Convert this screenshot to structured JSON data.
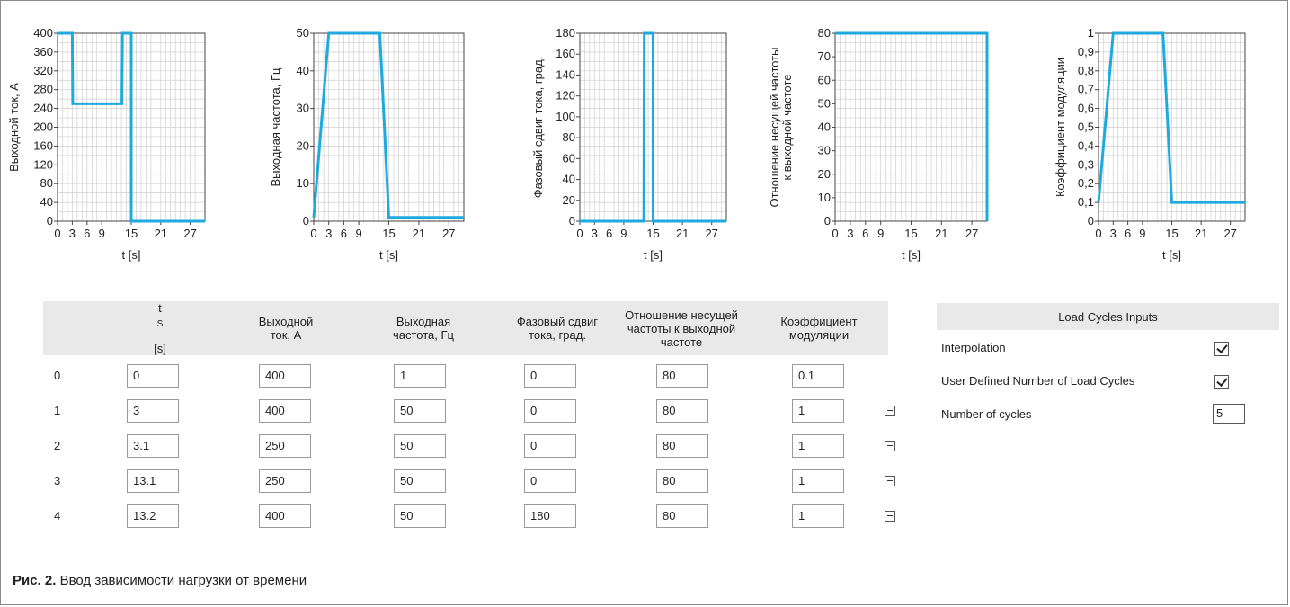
{
  "chart_data": [
    {
      "type": "line",
      "ylabel": "Выходной ток, А",
      "xlabel": "t [s]",
      "ylim": [
        0,
        400
      ],
      "xlim": [
        0,
        30
      ],
      "yticks": [
        0,
        40,
        80,
        120,
        160,
        200,
        240,
        280,
        320,
        360,
        400
      ],
      "xticks": [
        0,
        3,
        6,
        9,
        15,
        21,
        27
      ],
      "grid": true,
      "color": "#1fa9e1",
      "series": [
        {
          "x": [
            0,
            3,
            3.1,
            13.1,
            13.2,
            15,
            15,
            30
          ],
          "y": [
            400,
            400,
            250,
            250,
            400,
            400,
            0,
            0
          ]
        }
      ]
    },
    {
      "type": "line",
      "ylabel": "Выходная частота, Гц",
      "xlabel": "t [s]",
      "ylim": [
        0,
        50
      ],
      "xlim": [
        0,
        30
      ],
      "yticks": [
        0,
        10,
        20,
        30,
        40,
        50
      ],
      "xticks": [
        0,
        3,
        6,
        9,
        15,
        21,
        27
      ],
      "grid": true,
      "color": "#1fa9e1",
      "series": [
        {
          "x": [
            0,
            3,
            13.2,
            15,
            30
          ],
          "y": [
            1,
            50,
            50,
            1,
            1
          ]
        }
      ]
    },
    {
      "type": "line",
      "ylabel": "Фазовый сдвиг тока, град.",
      "xlabel": "t [s]",
      "ylim": [
        0,
        180
      ],
      "xlim": [
        0,
        30
      ],
      "yticks": [
        0,
        20,
        40,
        60,
        80,
        100,
        120,
        140,
        160,
        180
      ],
      "xticks": [
        0,
        3,
        6,
        9,
        15,
        21,
        27
      ],
      "grid": true,
      "color": "#1fa9e1",
      "series": [
        {
          "x": [
            0,
            13.1,
            13.2,
            15,
            15,
            30
          ],
          "y": [
            0,
            0,
            180,
            180,
            0,
            0
          ]
        }
      ]
    },
    {
      "type": "line",
      "ylabel": "Отношение несущей частоты к выходной частоте",
      "xlabel": "t [s]",
      "ylim": [
        0,
        80
      ],
      "xlim": [
        0,
        30
      ],
      "yticks": [
        0,
        10,
        20,
        30,
        40,
        50,
        60,
        70,
        80
      ],
      "xticks": [
        0,
        3,
        6,
        9,
        15,
        21,
        27
      ],
      "grid": true,
      "color": "#1fa9e1",
      "series": [
        {
          "x": [
            0,
            30,
            30
          ],
          "y": [
            80,
            80,
            0
          ]
        }
      ]
    },
    {
      "type": "line",
      "ylabel": "Коэффициент модуляции",
      "xlabel": "t [s]",
      "ylim": [
        0,
        1
      ],
      "xlim": [
        0,
        30
      ],
      "yticks": [
        0,
        0.1,
        0.2,
        0.3,
        0.4,
        0.5,
        0.6,
        0.7,
        0.8,
        0.9,
        1
      ],
      "ytick_labels": [
        "0",
        "0,1",
        "0,2",
        "0,3",
        "0,4",
        "0,5",
        "0,6",
        "0,7",
        "0,8",
        "0,9",
        "1"
      ],
      "xticks": [
        0,
        3,
        6,
        9,
        15,
        21,
        27
      ],
      "grid": true,
      "color": "#1fa9e1",
      "series": [
        {
          "x": [
            0,
            3,
            13.2,
            15,
            30
          ],
          "y": [
            0.1,
            1,
            1,
            0.1,
            0.1
          ]
        }
      ]
    }
  ],
  "table": {
    "headers": {
      "ts_main": "t",
      "ts_sub": "S",
      "ts_unit": "[s]",
      "current": "Выходной ток, А",
      "frequency": "Выходная частота, Гц",
      "phase": "Фазовый сдвиг тока, град.",
      "ratio": "Отношение несущей частоты к выходной частоте",
      "modulation": "Коэффициент модуляции"
    },
    "rows": [
      {
        "index": "0",
        "ts": "0",
        "current": "400",
        "frequency": "1",
        "phase": "0",
        "ratio": "80",
        "modulation": "0.1"
      },
      {
        "index": "1",
        "ts": "3",
        "current": "400",
        "frequency": "50",
        "phase": "0",
        "ratio": "80",
        "modulation": "1"
      },
      {
        "index": "2",
        "ts": "3.1",
        "current": "250",
        "frequency": "50",
        "phase": "0",
        "ratio": "80",
        "modulation": "1"
      },
      {
        "index": "3",
        "ts": "13.1",
        "current": "250",
        "frequency": "50",
        "phase": "0",
        "ratio": "80",
        "modulation": "1"
      },
      {
        "index": "4",
        "ts": "13.2",
        "current": "400",
        "frequency": "50",
        "phase": "180",
        "ratio": "80",
        "modulation": "1"
      }
    ]
  },
  "panel": {
    "title": "Load Cycles Inputs",
    "interpolation_label": "Interpolation",
    "interpolation_checked": true,
    "user_defined_label": "User Defined Number of Load Cycles",
    "user_defined_checked": true,
    "cycles_label": "Number of cycles",
    "cycles_value": "5"
  },
  "caption": {
    "prefix": "Рис. 2.",
    "text": "Ввод зависимости нагрузки от времени"
  }
}
